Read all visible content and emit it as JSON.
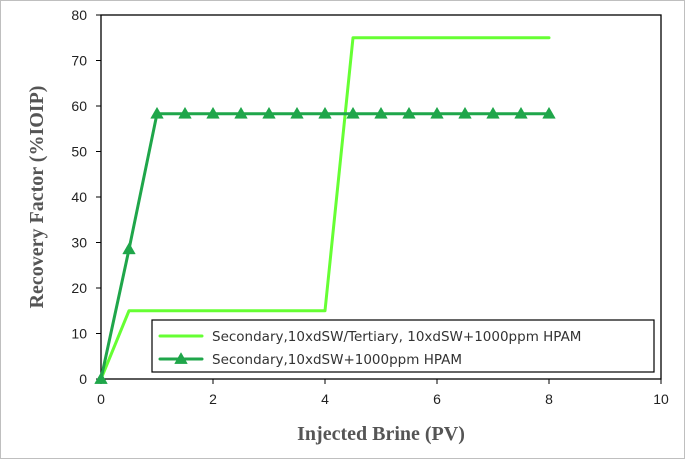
{
  "chart_data": {
    "type": "line",
    "title": "",
    "xlabel": "Injected Brine (PV)",
    "ylabel": "Recovery Factor (%IOIP)",
    "xlim": [
      0,
      10
    ],
    "ylim": [
      0,
      80
    ],
    "xticks": [
      "0",
      "2",
      "4",
      "6",
      "8",
      "10"
    ],
    "yticks": [
      "0",
      "10",
      "20",
      "30",
      "40",
      "50",
      "60",
      "70",
      "80"
    ],
    "grid": false,
    "legend_position": "bottom-right",
    "series": [
      {
        "name": "Secondary,10xdSW/Tertiary, 10xdSW+1000ppm HPAM",
        "color": "#66ff33",
        "marker": "none",
        "x": [
          0,
          0.5,
          4,
          4.5,
          8
        ],
        "y": [
          0,
          15,
          15,
          75,
          75
        ]
      },
      {
        "name": "Secondary,10xdSW+1000ppm HPAM",
        "color": "#1fa64a",
        "marker": "triangle",
        "x": [
          0,
          0.5,
          1,
          1.5,
          2,
          2.5,
          3,
          3.5,
          4,
          4.5,
          5,
          5.5,
          6,
          6.5,
          7,
          7.5,
          8
        ],
        "y": [
          0,
          28.5,
          58.3,
          58.3,
          58.3,
          58.3,
          58.3,
          58.3,
          58.3,
          58.3,
          58.3,
          58.3,
          58.3,
          58.3,
          58.3,
          58.3,
          58.3
        ]
      }
    ]
  }
}
